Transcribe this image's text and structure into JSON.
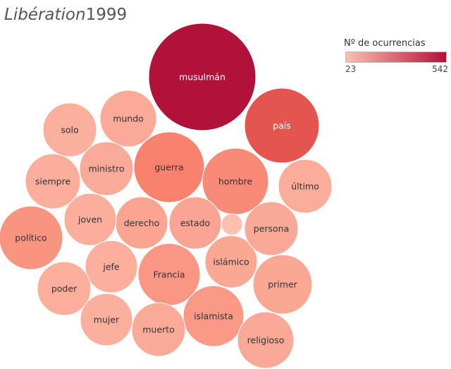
{
  "title_italic": "Libération",
  "title_year": "1999",
  "legend": {
    "title": "Nº de ocurrencias",
    "min_label": "23",
    "max_label": "542",
    "color_low": "#fcc0ae",
    "color_high": "#b0123a"
  },
  "chart_data": {
    "type": "bubble",
    "color_measure": "Nº de ocurrencias",
    "color_range": [
      23,
      542
    ],
    "bubbles": [
      {
        "label": "musulmán",
        "value": 542
      },
      {
        "label": "país",
        "value": 350
      },
      {
        "label": "guerra",
        "value": 215
      },
      {
        "label": "hombre",
        "value": 190
      },
      {
        "label": "político",
        "value": 160
      },
      {
        "label": "Francia",
        "value": 150
      },
      {
        "label": "islamista",
        "value": 145
      },
      {
        "label": "derecho",
        "value": 110
      },
      {
        "label": "estado",
        "value": 105
      },
      {
        "label": "primer",
        "value": 100
      },
      {
        "label": "islámico",
        "value": 100
      },
      {
        "label": "religioso",
        "value": 95
      },
      {
        "label": "persona",
        "value": 95
      },
      {
        "label": "mundo",
        "value": 92
      },
      {
        "label": "ministro",
        "value": 90
      },
      {
        "label": "muerto",
        "value": 88
      },
      {
        "label": "último",
        "value": 82
      },
      {
        "label": "siempre",
        "value": 80
      },
      {
        "label": "joven",
        "value": 78
      },
      {
        "label": "jefe",
        "value": 76
      },
      {
        "label": "poder",
        "value": 76
      },
      {
        "label": "solo",
        "value": 74
      },
      {
        "label": "mujer",
        "value": 74
      },
      {
        "label": "",
        "value": 23
      }
    ]
  }
}
